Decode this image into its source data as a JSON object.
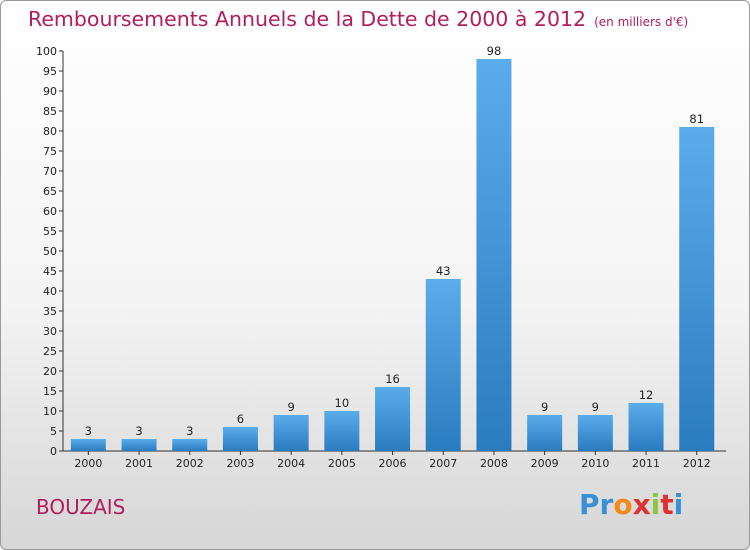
{
  "header": {
    "title": "Remboursements Annuels de la Dette de 2000 à 2012",
    "unit": "(en milliers d'€)"
  },
  "footer": {
    "town": "BOUZAIS",
    "logo": "Proxiti"
  },
  "colors": {
    "title": "#b01e5e",
    "bar_top": "#5aacea",
    "bar_bottom": "#2a7cc0"
  },
  "chart_data": {
    "type": "bar",
    "categories": [
      "2000",
      "2001",
      "2002",
      "2003",
      "2004",
      "2005",
      "2006",
      "2007",
      "2008",
      "2009",
      "2010",
      "2011",
      "2012"
    ],
    "values": [
      3,
      3,
      3,
      6,
      9,
      10,
      16,
      43,
      98,
      9,
      9,
      12,
      81
    ],
    "title": "Remboursements Annuels de la Dette de 2000 à 2012",
    "xlabel": "",
    "ylabel": "",
    "ylim": [
      0,
      100
    ],
    "yticks": [
      0,
      5,
      10,
      15,
      20,
      25,
      30,
      35,
      40,
      45,
      50,
      55,
      60,
      65,
      70,
      75,
      80,
      85,
      90,
      95,
      100
    ],
    "grid": false,
    "legend": "none"
  }
}
